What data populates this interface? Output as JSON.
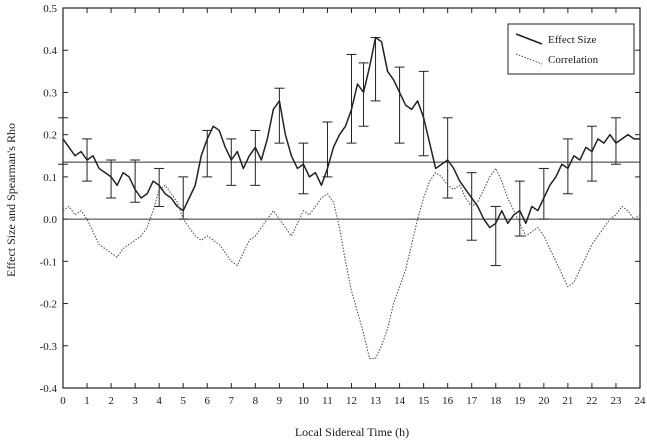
{
  "chart_data": {
    "type": "line",
    "xlabel": "Local Sidereal Time (h)",
    "ylabel": "Effect Size and Spearman's Rho",
    "xlim": [
      0,
      24
    ],
    "ylim": [
      -0.4,
      0.5
    ],
    "x_ticks": [
      0,
      1,
      2,
      3,
      4,
      5,
      6,
      7,
      8,
      9,
      10,
      11,
      12,
      13,
      14,
      15,
      16,
      17,
      18,
      19,
      20,
      21,
      22,
      23,
      24
    ],
    "y_ticks": [
      -0.4,
      -0.3,
      -0.2,
      -0.1,
      0.0,
      0.1,
      0.2,
      0.3,
      0.4,
      0.5
    ],
    "y_tick_labels": [
      "-0.4",
      "-0.3",
      "-0.2",
      "-0.1",
      "0.0",
      "0.1",
      "0.2",
      "0.3",
      "0.4",
      "0.5"
    ],
    "grid": false,
    "legend_position": "top-right",
    "reference_lines": [
      0.0,
      0.135
    ],
    "series": [
      {
        "name": "Effect Size",
        "style": "solid",
        "color": "#222222",
        "points": [
          [
            0,
            0.19
          ],
          [
            0.25,
            0.17
          ],
          [
            0.5,
            0.15
          ],
          [
            0.75,
            0.16
          ],
          [
            1,
            0.14
          ],
          [
            1.25,
            0.15
          ],
          [
            1.5,
            0.12
          ],
          [
            1.75,
            0.11
          ],
          [
            2,
            0.1
          ],
          [
            2.25,
            0.08
          ],
          [
            2.5,
            0.11
          ],
          [
            2.75,
            0.1
          ],
          [
            3,
            0.07
          ],
          [
            3.25,
            0.05
          ],
          [
            3.5,
            0.06
          ],
          [
            3.75,
            0.09
          ],
          [
            4,
            0.08
          ],
          [
            4.25,
            0.06
          ],
          [
            4.5,
            0.05
          ],
          [
            4.75,
            0.03
          ],
          [
            5,
            0.02
          ],
          [
            5.25,
            0.05
          ],
          [
            5.5,
            0.08
          ],
          [
            5.75,
            0.15
          ],
          [
            6,
            0.19
          ],
          [
            6.25,
            0.22
          ],
          [
            6.5,
            0.21
          ],
          [
            6.75,
            0.17
          ],
          [
            7,
            0.14
          ],
          [
            7.25,
            0.16
          ],
          [
            7.5,
            0.12
          ],
          [
            7.75,
            0.15
          ],
          [
            8,
            0.17
          ],
          [
            8.25,
            0.14
          ],
          [
            8.5,
            0.19
          ],
          [
            8.75,
            0.26
          ],
          [
            9,
            0.28
          ],
          [
            9.25,
            0.2
          ],
          [
            9.5,
            0.15
          ],
          [
            9.75,
            0.12
          ],
          [
            10,
            0.13
          ],
          [
            10.25,
            0.1
          ],
          [
            10.5,
            0.11
          ],
          [
            10.75,
            0.08
          ],
          [
            11,
            0.12
          ],
          [
            11.25,
            0.17
          ],
          [
            11.5,
            0.2
          ],
          [
            11.75,
            0.22
          ],
          [
            12,
            0.26
          ],
          [
            12.25,
            0.32
          ],
          [
            12.5,
            0.3
          ],
          [
            12.75,
            0.36
          ],
          [
            13,
            0.43
          ],
          [
            13.25,
            0.42
          ],
          [
            13.5,
            0.35
          ],
          [
            13.75,
            0.33
          ],
          [
            14,
            0.3
          ],
          [
            14.25,
            0.27
          ],
          [
            14.5,
            0.26
          ],
          [
            14.75,
            0.28
          ],
          [
            15,
            0.24
          ],
          [
            15.25,
            0.18
          ],
          [
            15.5,
            0.12
          ],
          [
            15.75,
            0.13
          ],
          [
            16,
            0.14
          ],
          [
            16.25,
            0.12
          ],
          [
            16.5,
            0.09
          ],
          [
            16.75,
            0.07
          ],
          [
            17,
            0.05
          ],
          [
            17.25,
            0.03
          ],
          [
            17.5,
            0.0
          ],
          [
            17.75,
            -0.02
          ],
          [
            18,
            -0.01
          ],
          [
            18.25,
            0.02
          ],
          [
            18.5,
            -0.01
          ],
          [
            18.75,
            0.01
          ],
          [
            19,
            0.02
          ],
          [
            19.25,
            -0.01
          ],
          [
            19.5,
            0.03
          ],
          [
            19.75,
            0.02
          ],
          [
            20,
            0.05
          ],
          [
            20.25,
            0.08
          ],
          [
            20.5,
            0.1
          ],
          [
            20.75,
            0.13
          ],
          [
            21,
            0.12
          ],
          [
            21.25,
            0.15
          ],
          [
            21.5,
            0.14
          ],
          [
            21.75,
            0.17
          ],
          [
            22,
            0.16
          ],
          [
            22.25,
            0.19
          ],
          [
            22.5,
            0.18
          ],
          [
            22.75,
            0.2
          ],
          [
            23,
            0.18
          ],
          [
            23.25,
            0.19
          ],
          [
            23.5,
            0.2
          ],
          [
            23.75,
            0.19
          ],
          [
            24,
            0.19
          ]
        ],
        "error_bars": [
          {
            "x": 0,
            "low": 0.13,
            "high": 0.24
          },
          {
            "x": 1,
            "low": 0.09,
            "high": 0.19
          },
          {
            "x": 2,
            "low": 0.05,
            "high": 0.14
          },
          {
            "x": 3,
            "low": 0.04,
            "high": 0.14
          },
          {
            "x": 4,
            "low": 0.03,
            "high": 0.12
          },
          {
            "x": 5,
            "low": 0.0,
            "high": 0.1
          },
          {
            "x": 6,
            "low": 0.1,
            "high": 0.21
          },
          {
            "x": 7,
            "low": 0.08,
            "high": 0.19
          },
          {
            "x": 8,
            "low": 0.08,
            "high": 0.21
          },
          {
            "x": 9,
            "low": 0.18,
            "high": 0.31
          },
          {
            "x": 10,
            "low": 0.06,
            "high": 0.18
          },
          {
            "x": 11,
            "low": 0.1,
            "high": 0.23
          },
          {
            "x": 12,
            "low": 0.18,
            "high": 0.39
          },
          {
            "x": 12.5,
            "low": 0.22,
            "high": 0.37
          },
          {
            "x": 13,
            "low": 0.28,
            "high": 0.43
          },
          {
            "x": 14,
            "low": 0.18,
            "high": 0.36
          },
          {
            "x": 15,
            "low": 0.15,
            "high": 0.35
          },
          {
            "x": 16,
            "low": 0.05,
            "high": 0.24
          },
          {
            "x": 17,
            "low": -0.05,
            "high": 0.11
          },
          {
            "x": 18,
            "low": -0.11,
            "high": 0.03
          },
          {
            "x": 19,
            "low": -0.04,
            "high": 0.09
          },
          {
            "x": 20,
            "low": 0.0,
            "high": 0.12
          },
          {
            "x": 21,
            "low": 0.06,
            "high": 0.19
          },
          {
            "x": 22,
            "low": 0.09,
            "high": 0.22
          },
          {
            "x": 23,
            "low": 0.13,
            "high": 0.24
          }
        ]
      },
      {
        "name": "Correlation",
        "style": "dotted",
        "color": "#555555",
        "points": [
          [
            0,
            0.02
          ],
          [
            0.25,
            0.03
          ],
          [
            0.5,
            0.01
          ],
          [
            0.75,
            0.02
          ],
          [
            1,
            0.0
          ],
          [
            1.25,
            -0.03
          ],
          [
            1.5,
            -0.06
          ],
          [
            1.75,
            -0.07
          ],
          [
            2,
            -0.08
          ],
          [
            2.25,
            -0.09
          ],
          [
            2.5,
            -0.07
          ],
          [
            2.75,
            -0.06
          ],
          [
            3,
            -0.05
          ],
          [
            3.25,
            -0.04
          ],
          [
            3.5,
            -0.02
          ],
          [
            3.75,
            0.02
          ],
          [
            4,
            0.07
          ],
          [
            4.25,
            0.08
          ],
          [
            4.5,
            0.06
          ],
          [
            4.75,
            0.04
          ],
          [
            5,
            0.0
          ],
          [
            5.25,
            -0.02
          ],
          [
            5.5,
            -0.04
          ],
          [
            5.75,
            -0.05
          ],
          [
            6,
            -0.04
          ],
          [
            6.25,
            -0.05
          ],
          [
            6.5,
            -0.06
          ],
          [
            6.75,
            -0.08
          ],
          [
            7,
            -0.1
          ],
          [
            7.25,
            -0.11
          ],
          [
            7.5,
            -0.08
          ],
          [
            7.75,
            -0.05
          ],
          [
            8,
            -0.04
          ],
          [
            8.25,
            -0.02
          ],
          [
            8.5,
            0.0
          ],
          [
            8.75,
            0.02
          ],
          [
            9,
            0.0
          ],
          [
            9.25,
            -0.02
          ],
          [
            9.5,
            -0.04
          ],
          [
            9.75,
            -0.01
          ],
          [
            10,
            0.02
          ],
          [
            10.25,
            0.01
          ],
          [
            10.5,
            0.03
          ],
          [
            10.75,
            0.05
          ],
          [
            11,
            0.06
          ],
          [
            11.25,
            0.04
          ],
          [
            11.5,
            -0.02
          ],
          [
            11.75,
            -0.1
          ],
          [
            12,
            -0.17
          ],
          [
            12.25,
            -0.22
          ],
          [
            12.5,
            -0.27
          ],
          [
            12.75,
            -0.33
          ],
          [
            13,
            -0.33
          ],
          [
            13.25,
            -0.3
          ],
          [
            13.5,
            -0.26
          ],
          [
            13.75,
            -0.2
          ],
          [
            14,
            -0.16
          ],
          [
            14.25,
            -0.12
          ],
          [
            14.5,
            -0.06
          ],
          [
            14.75,
            0.0
          ],
          [
            15,
            0.05
          ],
          [
            15.25,
            0.09
          ],
          [
            15.5,
            0.11
          ],
          [
            15.75,
            0.1
          ],
          [
            16,
            0.08
          ],
          [
            16.25,
            0.07
          ],
          [
            16.5,
            0.08
          ],
          [
            16.75,
            0.05
          ],
          [
            17,
            0.03
          ],
          [
            17.25,
            0.04
          ],
          [
            17.5,
            0.07
          ],
          [
            17.75,
            0.1
          ],
          [
            18,
            0.12
          ],
          [
            18.25,
            0.09
          ],
          [
            18.5,
            0.05
          ],
          [
            18.75,
            0.02
          ],
          [
            19,
            -0.01
          ],
          [
            19.25,
            -0.04
          ],
          [
            19.5,
            -0.03
          ],
          [
            19.75,
            -0.02
          ],
          [
            20,
            -0.04
          ],
          [
            20.25,
            -0.07
          ],
          [
            20.5,
            -0.1
          ],
          [
            20.75,
            -0.13
          ],
          [
            21,
            -0.16
          ],
          [
            21.25,
            -0.15
          ],
          [
            21.5,
            -0.12
          ],
          [
            21.75,
            -0.09
          ],
          [
            22,
            -0.06
          ],
          [
            22.25,
            -0.04
          ],
          [
            22.5,
            -0.02
          ],
          [
            22.75,
            0.0
          ],
          [
            23,
            0.01
          ],
          [
            23.25,
            0.03
          ],
          [
            23.5,
            0.02
          ],
          [
            23.75,
            0.0
          ],
          [
            24,
            0.01
          ]
        ]
      }
    ]
  }
}
